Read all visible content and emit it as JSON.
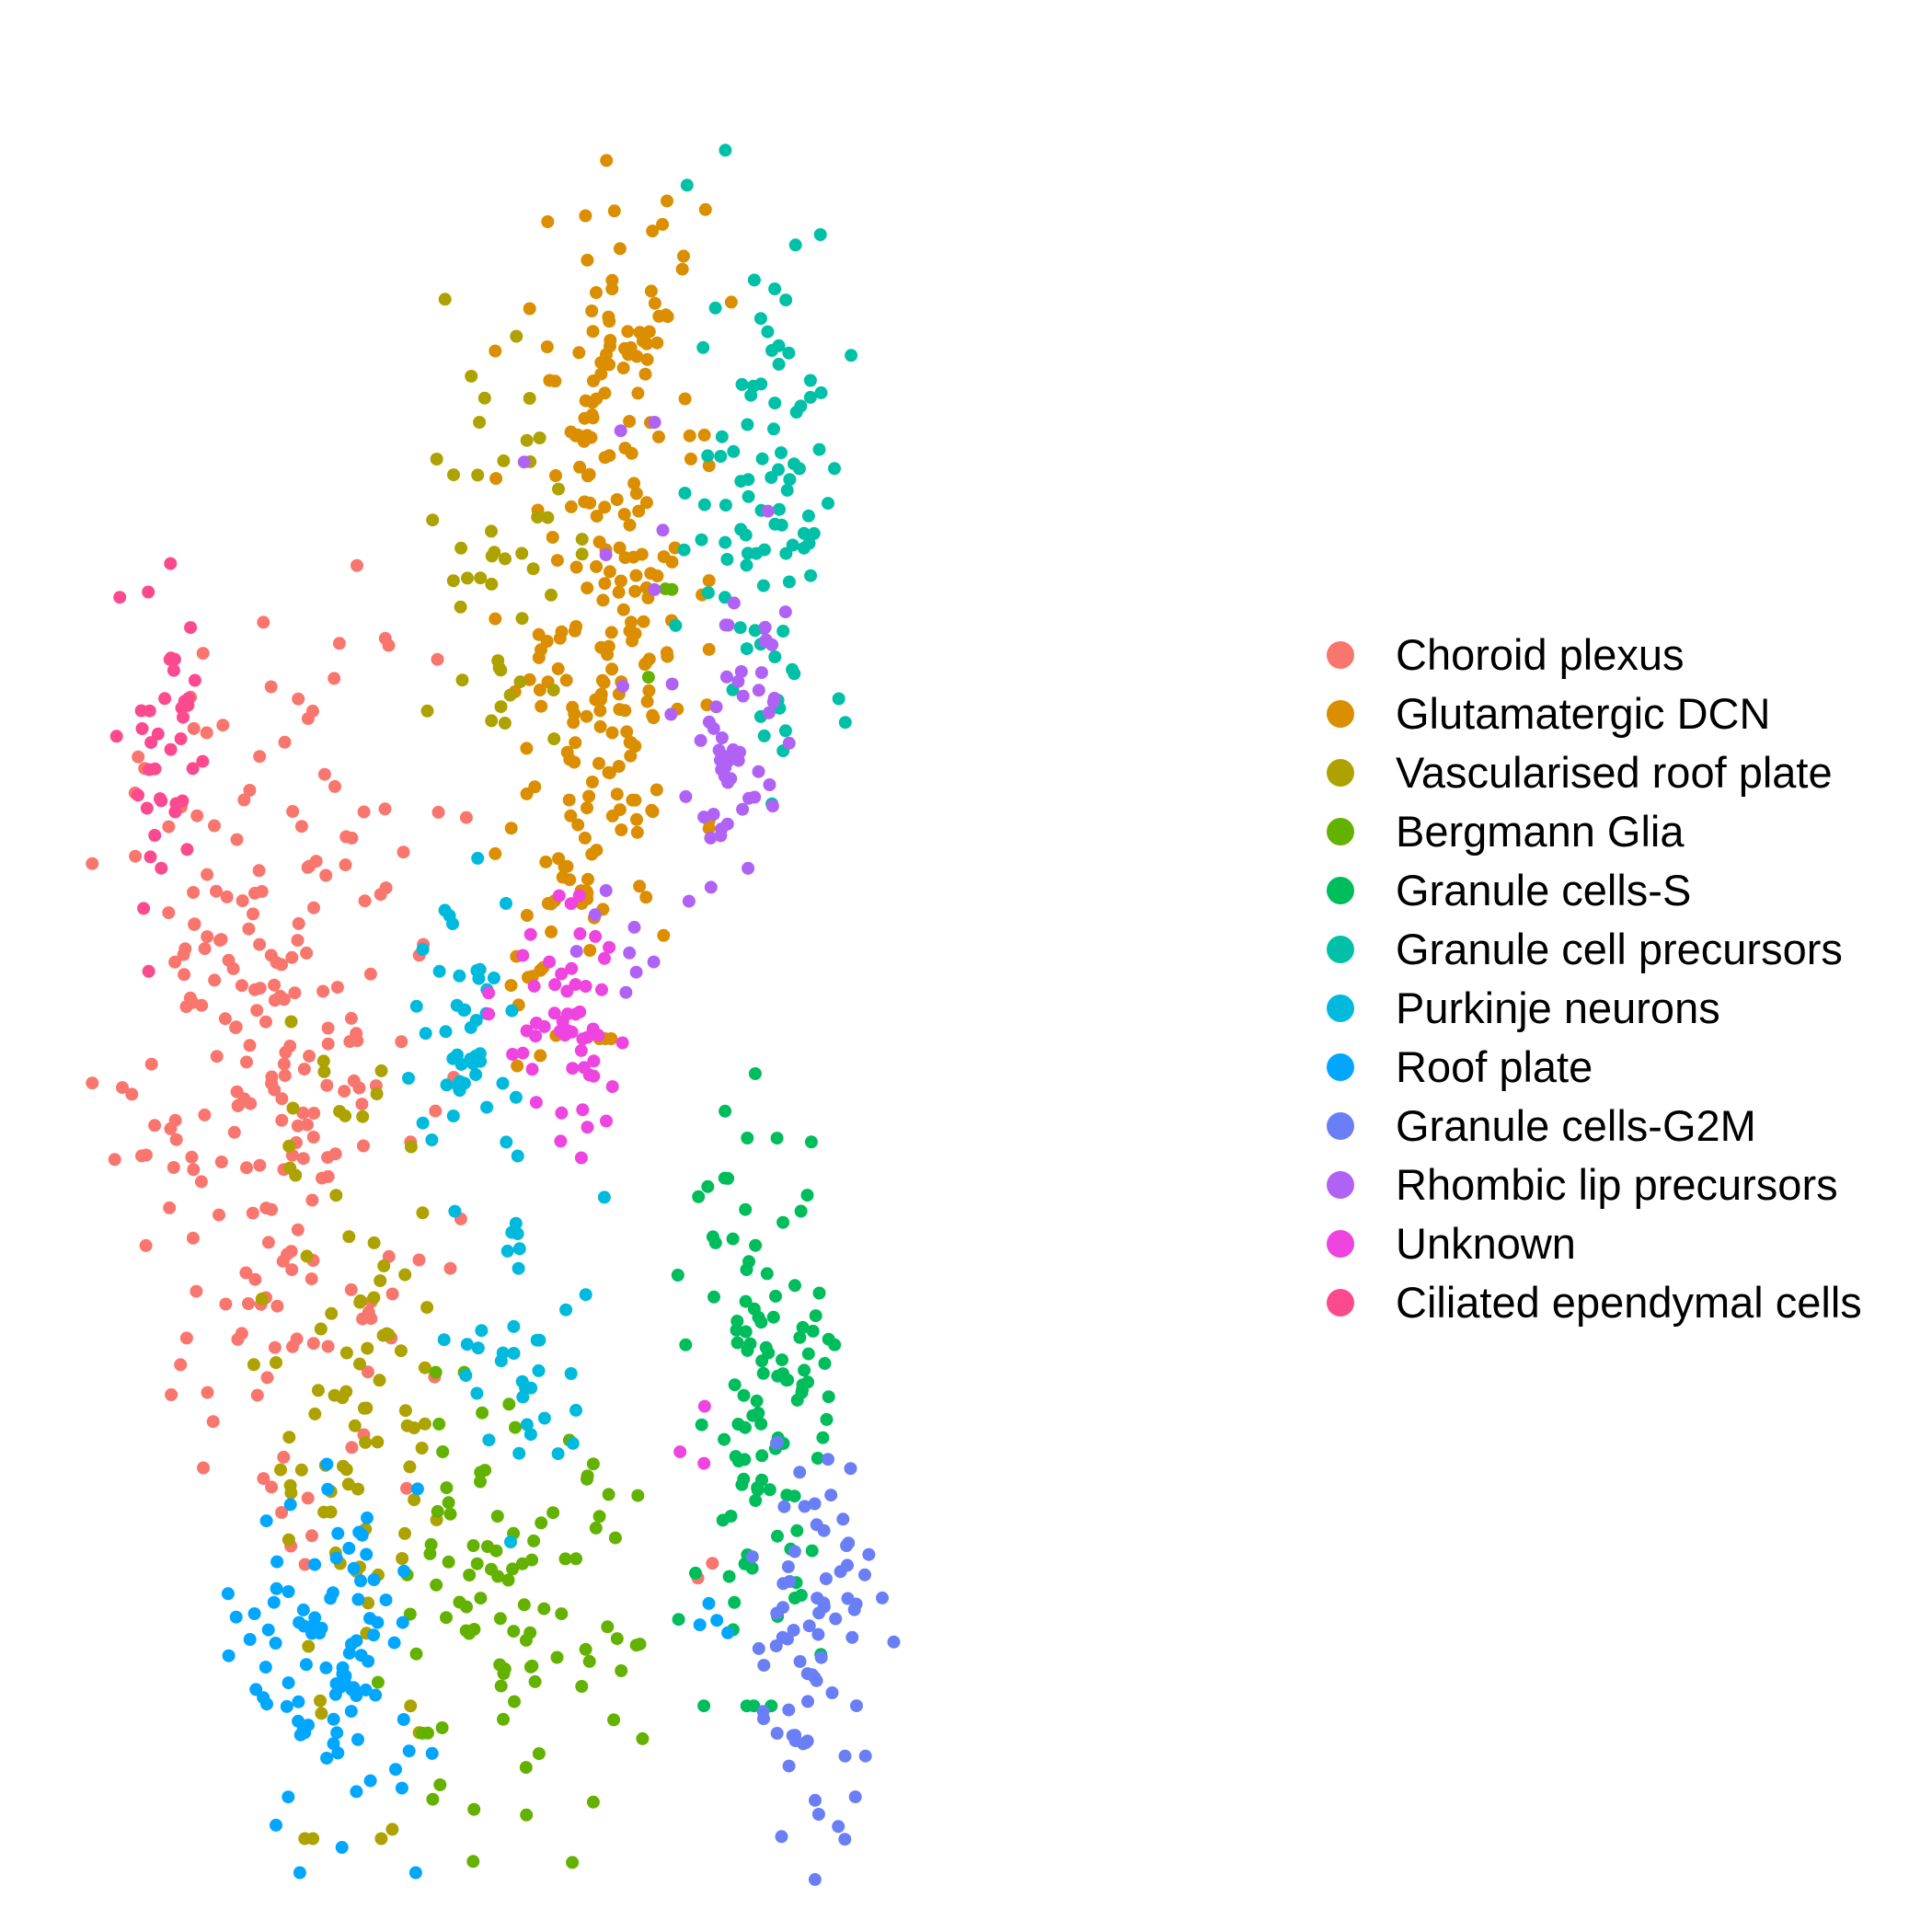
{
  "chart_data": {
    "type": "scatter",
    "title": "",
    "xlabel": "",
    "ylabel": "",
    "axes_visible": false,
    "grid": false,
    "legend_position": "right",
    "xlim": [
      0,
      100
    ],
    "ylim": [
      0,
      100
    ],
    "series": [
      {
        "name": "Choroid plexus",
        "color": "#F8766D",
        "clusters": [
          {
            "cx": 16,
            "cy": 45,
            "sx": 7,
            "sy": 12,
            "n": 230
          },
          {
            "cx": 16,
            "cy": 18,
            "sx": 1.5,
            "sy": 1.5,
            "n": 6
          },
          {
            "cx": 54,
            "cy": 14,
            "sx": 1,
            "sy": 1,
            "n": 2
          }
        ]
      },
      {
        "name": "Glutamatergic DCN",
        "color": "#DB8E00",
        "clusters": [
          {
            "cx": 45,
            "cy": 70,
            "sx": 4,
            "sy": 10,
            "n": 190
          },
          {
            "cx": 47,
            "cy": 88,
            "sx": 4,
            "sy": 4,
            "n": 40
          },
          {
            "cx": 41,
            "cy": 54,
            "sx": 3,
            "sy": 4,
            "n": 25
          }
        ]
      },
      {
        "name": "Vascularised roof plate",
        "color": "#AEA200",
        "clusters": [
          {
            "cx": 36,
            "cy": 74,
            "sx": 3,
            "sy": 7,
            "n": 45
          },
          {
            "cx": 23,
            "cy": 23,
            "sx": 4,
            "sy": 10,
            "n": 90
          }
        ]
      },
      {
        "name": "Bergmann Glia",
        "color": "#64B200",
        "clusters": [
          {
            "cx": 36,
            "cy": 12,
            "sx": 6,
            "sy": 6,
            "n": 95
          },
          {
            "cx": 50,
            "cy": 71,
            "sx": 2,
            "sy": 2,
            "n": 3
          }
        ]
      },
      {
        "name": "Granule cells-S",
        "color": "#00BD5C",
        "clusters": [
          {
            "cx": 59,
            "cy": 26,
            "sx": 3,
            "sy": 8,
            "n": 95
          },
          {
            "cx": 64,
            "cy": 22,
            "sx": 1.5,
            "sy": 6,
            "n": 18
          }
        ]
      },
      {
        "name": "Granule cell precursors",
        "color": "#00C1A7",
        "clusters": [
          {
            "cx": 60,
            "cy": 79,
            "sx": 3.5,
            "sy": 8,
            "n": 95
          }
        ]
      },
      {
        "name": "Purkinje neurons",
        "color": "#00BADE",
        "clusters": [
          {
            "cx": 33,
            "cy": 47,
            "sx": 2.5,
            "sy": 4,
            "n": 45
          },
          {
            "cx": 38,
            "cy": 28,
            "sx": 3,
            "sy": 5,
            "n": 40
          }
        ]
      },
      {
        "name": "Roof plate",
        "color": "#00A6FF",
        "clusters": [
          {
            "cx": 21,
            "cy": 9,
            "sx": 4,
            "sy": 5,
            "n": 95
          },
          {
            "cx": 55,
            "cy": 12,
            "sx": 1,
            "sy": 1,
            "n": 4
          }
        ]
      },
      {
        "name": "Granule cells-G2M",
        "color": "#B385FF",
        "fill": "#6A7FF5",
        "clusters": [
          {
            "cx": 64,
            "cy": 11,
            "sx": 3,
            "sy": 6,
            "n": 75
          }
        ]
      },
      {
        "name": "Rhombic lip precursors",
        "color": "#EF67EB",
        "fill": "#B062F5",
        "clusters": [
          {
            "cx": 57,
            "cy": 62,
            "sx": 2,
            "sy": 4,
            "n": 50
          },
          {
            "cx": 50,
            "cy": 76,
            "sx": 5,
            "sy": 6,
            "n": 12
          },
          {
            "cx": 46,
            "cy": 52,
            "sx": 2,
            "sy": 2,
            "n": 8
          }
        ]
      },
      {
        "name": "Unknown",
        "color": "#EE44E0",
        "clusters": [
          {
            "cx": 42,
            "cy": 46,
            "sx": 3,
            "sy": 3.5,
            "n": 55
          },
          {
            "cx": 53,
            "cy": 22,
            "sx": 1,
            "sy": 1,
            "n": 3
          }
        ]
      },
      {
        "name": "Ciliated ependymal cells",
        "color": "#FF63B6",
        "fill": "#FB4A8E",
        "clusters": [
          {
            "cx": 6,
            "cy": 62,
            "sx": 2,
            "sy": 6,
            "n": 40
          }
        ]
      }
    ]
  }
}
